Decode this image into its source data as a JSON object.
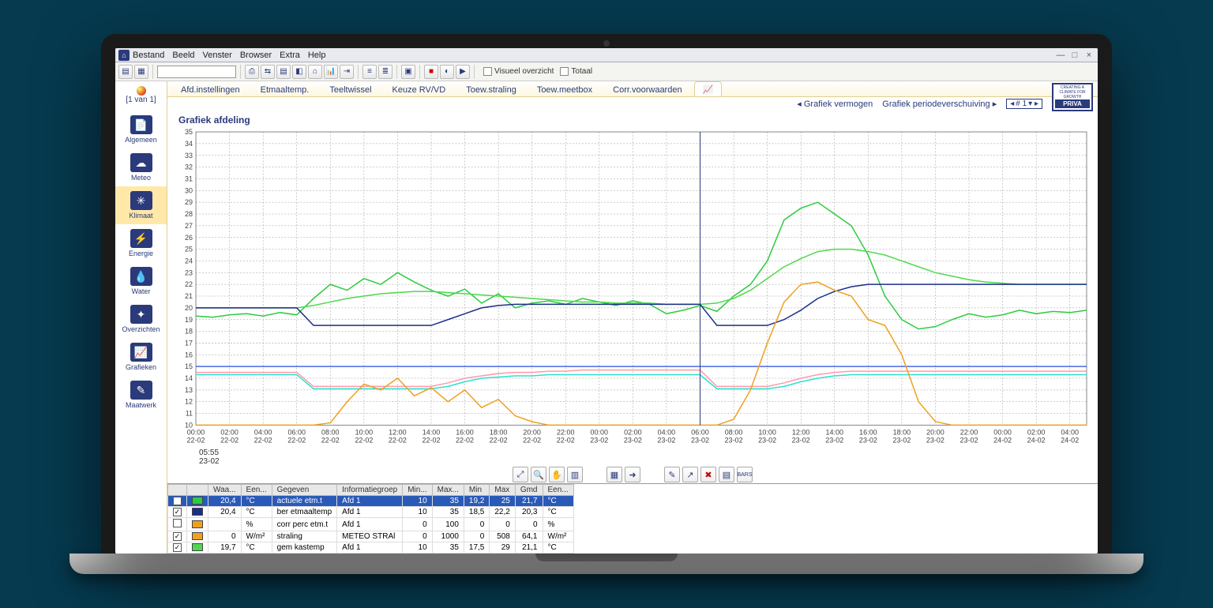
{
  "ui": {
    "menus": [
      "Bestand",
      "Beeld",
      "Venster",
      "Browser",
      "Extra",
      "Help"
    ],
    "checks": {
      "visueel": "Visueel overzicht",
      "totaal": "Totaal"
    },
    "pager": "[1 van 1]",
    "brand": "PRIVA"
  },
  "sidebar": [
    {
      "label": "Algemeen",
      "glyph": "📄",
      "active": false
    },
    {
      "label": "Meteo",
      "glyph": "☁",
      "active": false
    },
    {
      "label": "Klimaat",
      "glyph": "✳",
      "active": true
    },
    {
      "label": "Energie",
      "glyph": "⚡",
      "active": false
    },
    {
      "label": "Water",
      "glyph": "💧",
      "active": false
    },
    {
      "label": "Overzichten",
      "glyph": "✦",
      "active": false
    },
    {
      "label": "Grafieken",
      "glyph": "📈",
      "active": false
    },
    {
      "label": "Maatwerk",
      "glyph": "✎",
      "active": false
    }
  ],
  "tabs": [
    "Afd.instellingen",
    "Etmaaltemp.",
    "Teeltwissel",
    "Keuze RV/VD",
    "Toew.straling",
    "Toew.meetbox",
    "Corr.voorwaarden"
  ],
  "subbar": {
    "link1": "Grafiek vermogen",
    "link2": "Grafiek periodeverschuiving",
    "page": "# 1"
  },
  "chart": {
    "title": "Grafiek afdeling",
    "y_min": 10,
    "y_max": 35,
    "y_step": 1,
    "x_labels": [
      "00:00 22-02",
      "02:00 22-02",
      "04:00 22-02",
      "06:00 22-02",
      "08:00 22-02",
      "10:00 22-02",
      "12:00 22-02",
      "14:00 22-02",
      "16:00 22-02",
      "18:00 22-02",
      "20:00 22-02",
      "22:00 22-02",
      "00:00 23-02",
      "02:00 23-02",
      "04:00 23-02",
      "06:00 23-02",
      "08:00 23-02",
      "10:00 23-02",
      "12:00 23-02",
      "14:00 23-02",
      "16:00 23-02",
      "18:00 23-02",
      "20:00 23-02",
      "22:00 23-02",
      "00:00 24-02",
      "02:00 24-02",
      "04:00 24-02"
    ],
    "cursor_x": 15,
    "cursor_time": "05:55",
    "cursor_date": "23-02",
    "series": {
      "actuele": {
        "color": "#2ecc40",
        "width": 1.5,
        "pts": [
          19.3,
          19.2,
          19.4,
          19.5,
          19.3,
          19.6,
          19.4,
          20.8,
          22.0,
          21.5,
          22.5,
          22.0,
          23.0,
          22.2,
          21.5,
          21.0,
          21.6,
          20.4,
          21.2,
          20.0,
          20.4,
          20.6,
          20.3,
          20.8,
          20.5,
          20.2,
          20.6,
          20.3,
          19.5,
          19.8,
          20.2,
          19.7,
          21.0,
          22.0,
          24.0,
          27.5,
          28.5,
          29.0,
          28.0,
          27.0,
          24.5,
          21.0,
          19.0,
          18.2,
          18.4,
          19.0,
          19.5,
          19.2,
          19.4,
          19.8,
          19.5,
          19.7,
          19.6,
          19.8
        ]
      },
      "ber_etm": {
        "color": "#4fd84f",
        "width": 1.5,
        "pts": [
          20.0,
          20.0,
          20.0,
          20.0,
          20.0,
          20.0,
          20.0,
          20.2,
          20.5,
          20.8,
          21.0,
          21.2,
          21.3,
          21.4,
          21.4,
          21.3,
          21.2,
          21.1,
          21.0,
          20.9,
          20.8,
          20.7,
          20.6,
          20.5,
          20.5,
          20.4,
          20.4,
          20.4,
          20.3,
          20.3,
          20.3,
          20.4,
          20.8,
          21.5,
          22.5,
          23.5,
          24.2,
          24.8,
          25.0,
          25.0,
          24.8,
          24.5,
          24.0,
          23.5,
          23.0,
          22.7,
          22.4,
          22.2,
          22.1,
          22.0,
          22.0,
          22.0,
          22.0,
          22.0
        ]
      },
      "step_nav": {
        "color": "#1a2f8a",
        "width": 1.8,
        "pts": [
          20.0,
          20.0,
          20.0,
          20.0,
          20.0,
          20.0,
          20.0,
          18.5,
          18.5,
          18.5,
          18.5,
          18.5,
          18.5,
          18.5,
          18.5,
          19.0,
          19.5,
          20.0,
          20.2,
          20.3,
          20.3,
          20.3,
          20.3,
          20.3,
          20.3,
          20.3,
          20.3,
          20.3,
          20.3,
          20.3,
          20.3,
          18.5,
          18.5,
          18.5,
          18.5,
          19.0,
          19.8,
          20.8,
          21.4,
          21.8,
          22.0,
          22.0,
          22.0,
          22.0,
          22.0,
          22.0,
          22.0,
          22.0,
          22.0,
          22.0,
          22.0,
          22.0,
          22.0,
          22.0
        ]
      },
      "flat_blue": {
        "color": "#4a6ae0",
        "width": 0.8,
        "pts": [
          15.0,
          15.0,
          15.0,
          15.0,
          15.0,
          15.0,
          15.0,
          15.0,
          15.0,
          15.0,
          15.0,
          15.0,
          15.0,
          15.0,
          15.0,
          15.0,
          15.0,
          15.0,
          15.0,
          15.0,
          15.0,
          15.0,
          15.0,
          15.0,
          15.0,
          15.0,
          15.0,
          15.0,
          15.0,
          15.0,
          15.0,
          15.0,
          15.0,
          15.0,
          15.0,
          15.0,
          15.0,
          15.0,
          15.0,
          15.0,
          15.0,
          15.0,
          15.0,
          15.0,
          15.0,
          15.0,
          15.0,
          15.0,
          15.0,
          15.0,
          15.0,
          15.0,
          15.0,
          15.0
        ]
      },
      "pink": {
        "color": "#ff9aa8",
        "width": 1.2,
        "pts": [
          14.5,
          14.5,
          14.5,
          14.5,
          14.5,
          14.5,
          14.5,
          13.3,
          13.3,
          13.3,
          13.3,
          13.3,
          13.3,
          13.3,
          13.3,
          13.6,
          14.0,
          14.2,
          14.4,
          14.5,
          14.5,
          14.6,
          14.6,
          14.7,
          14.7,
          14.7,
          14.7,
          14.7,
          14.7,
          14.7,
          14.7,
          13.3,
          13.3,
          13.3,
          13.3,
          13.6,
          14.0,
          14.3,
          14.5,
          14.6,
          14.6,
          14.6,
          14.6,
          14.6,
          14.6,
          14.6,
          14.6,
          14.6,
          14.6,
          14.6,
          14.6,
          14.6,
          14.6,
          14.6
        ]
      },
      "cyan": {
        "color": "#2de0d0",
        "width": 1.5,
        "pts": [
          14.3,
          14.3,
          14.3,
          14.3,
          14.3,
          14.3,
          14.3,
          13.1,
          13.1,
          13.1,
          13.1,
          13.1,
          13.1,
          13.1,
          13.1,
          13.3,
          13.7,
          14.0,
          14.1,
          14.2,
          14.2,
          14.3,
          14.3,
          14.3,
          14.3,
          14.3,
          14.3,
          14.3,
          14.3,
          14.3,
          14.3,
          13.1,
          13.1,
          13.1,
          13.1,
          13.3,
          13.7,
          14.0,
          14.2,
          14.3,
          14.3,
          14.3,
          14.3,
          14.3,
          14.3,
          14.3,
          14.3,
          14.3,
          14.3,
          14.3,
          14.3,
          14.3,
          14.3,
          14.3
        ]
      },
      "straling": {
        "color": "#f0a020",
        "width": 1.5,
        "pts": [
          10.0,
          10.0,
          10.0,
          10.0,
          10.0,
          10.0,
          10.0,
          10.0,
          10.2,
          12.0,
          13.5,
          13.0,
          14.0,
          12.5,
          13.2,
          12.0,
          13.0,
          11.5,
          12.2,
          10.8,
          10.3,
          10.0,
          10.0,
          10.0,
          10.0,
          10.0,
          10.0,
          10.0,
          10.0,
          10.0,
          10.0,
          10.0,
          10.5,
          13.0,
          17.0,
          20.5,
          22.0,
          22.2,
          21.5,
          21.0,
          19.0,
          18.5,
          16.0,
          12.0,
          10.3,
          10.0,
          10.0,
          10.0,
          10.0,
          10.0,
          10.0,
          10.0,
          10.0,
          10.0
        ]
      }
    }
  },
  "table": {
    "headers": [
      "",
      "",
      "Waa...",
      "Een...",
      "Gegeven",
      "Informatiegroep",
      "Min...",
      "Max...",
      "Min",
      "Max",
      "Gmd",
      "Een..."
    ],
    "rows": [
      {
        "chk": true,
        "color": "#2ecc40",
        "waa": "20,4",
        "een": "°C",
        "geg": "actuele etm.t",
        "info": "Afd 1",
        "mn": "10",
        "mx": "35",
        "min": "19,2",
        "max": "25",
        "gmd": "21,7",
        "e2": "°C",
        "sel": true
      },
      {
        "chk": true,
        "color": "#1a2f8a",
        "waa": "20,4",
        "een": "°C",
        "geg": "ber etmaaltemp",
        "info": "Afd 1",
        "mn": "10",
        "mx": "35",
        "min": "18,5",
        "max": "22,2",
        "gmd": "20,3",
        "e2": "°C",
        "sel": false
      },
      {
        "chk": false,
        "color": "#f0a020",
        "waa": "",
        "een": "%",
        "geg": "corr perc etm.t",
        "info": "Afd 1",
        "mn": "0",
        "mx": "100",
        "min": "0",
        "max": "0",
        "gmd": "0",
        "e2": "%",
        "sel": false
      },
      {
        "chk": true,
        "color": "#f0a020",
        "waa": "0",
        "een": "W/m²",
        "geg": "straling",
        "info": "METEO STRAl",
        "mn": "0",
        "mx": "1000",
        "min": "0",
        "max": "508",
        "gmd": "64,1",
        "e2": "W/m²",
        "sel": false
      },
      {
        "chk": true,
        "color": "#4fd84f",
        "waa": "19,7",
        "een": "°C",
        "geg": "gem kastemp",
        "info": "Afd 1",
        "mn": "10",
        "mx": "35",
        "min": "17,5",
        "max": "29",
        "gmd": "21,1",
        "e2": "°C",
        "sel": false
      }
    ]
  }
}
